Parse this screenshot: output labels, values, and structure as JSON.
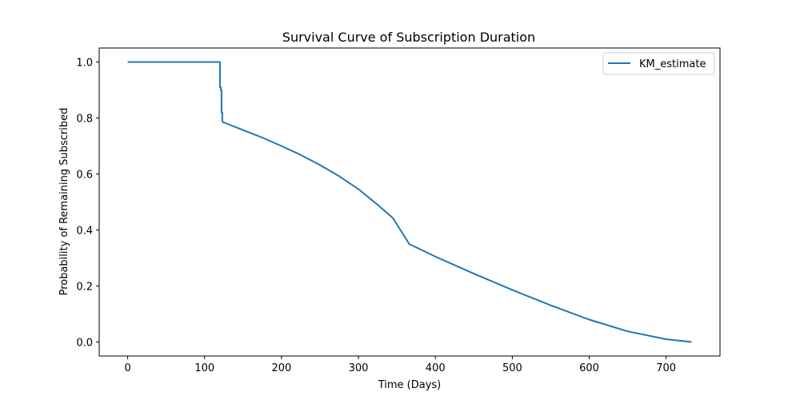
{
  "chart_data": {
    "type": "line",
    "title": "Survival Curve of Subscription Duration",
    "xlabel": "Time (Days)",
    "ylabel": "Probability of Remaining Subscribed",
    "xlim": [
      -37,
      770
    ],
    "ylim": [
      -0.05,
      1.05
    ],
    "x_ticks": [
      0,
      100,
      200,
      300,
      400,
      500,
      600,
      700
    ],
    "y_ticks": [
      0.0,
      0.2,
      0.4,
      0.6,
      0.8,
      1.0
    ],
    "grid": false,
    "legend_position": "top-right",
    "series": [
      {
        "name": "KM_estimate",
        "color": "#1f77b4",
        "step": true,
        "x": [
          0,
          120,
          120,
          121,
          121,
          122,
          122,
          123,
          123,
          124,
          150,
          175,
          200,
          225,
          250,
          275,
          300,
          325,
          345,
          366,
          400,
          450,
          500,
          550,
          600,
          650,
          700,
          733
        ],
        "y": [
          1.0,
          1.0,
          0.91,
          0.91,
          0.9,
          0.9,
          0.82,
          0.82,
          0.79,
          0.785,
          0.757,
          0.73,
          0.7,
          0.668,
          0.632,
          0.592,
          0.546,
          0.49,
          0.442,
          0.35,
          0.305,
          0.244,
          0.186,
          0.131,
          0.08,
          0.038,
          0.01,
          0.0
        ]
      }
    ]
  }
}
